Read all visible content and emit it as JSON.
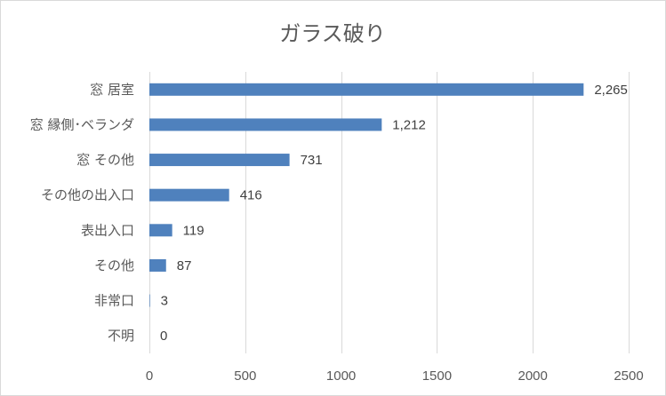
{
  "chart_data": {
    "type": "bar",
    "orientation": "horizontal",
    "title": "ガラス破り",
    "categories": [
      "窓 居室",
      "窓 縁側･ベランダ",
      "窓 その他",
      "その他の出入口",
      "表出入口",
      "その他",
      "非常口",
      "不明"
    ],
    "values": [
      2265,
      1212,
      731,
      416,
      119,
      87,
      3,
      0
    ],
    "data_labels": [
      "2,265",
      "1,212",
      "731",
      "416",
      "119",
      "87",
      "3",
      "0"
    ],
    "xlim": [
      0,
      2500
    ],
    "xticks": [
      "0",
      "500",
      "1000",
      "1500",
      "2000",
      "2500"
    ],
    "xtick_values": [
      0,
      500,
      1000,
      1500,
      2000,
      2500
    ],
    "grid": "vertical",
    "legend": "none",
    "bar_color": "#4f81bd",
    "grid_color": "#d9d9d9"
  }
}
